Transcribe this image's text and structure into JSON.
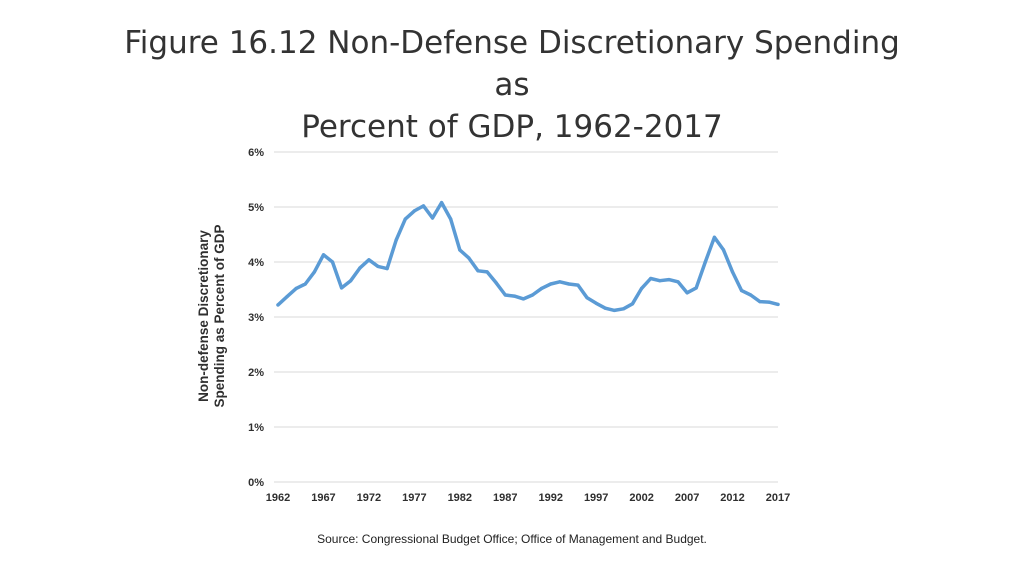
{
  "slide": {
    "title_line1": "Figure 16.12 Non-Defense Discretionary Spending as",
    "title_line2": "Percent of GDP, 1962-2017",
    "source": "Source: Congressional Budget Office; Office of Management and Budget."
  },
  "chart_data": {
    "type": "line",
    "title": "Figure 16.12 Non-Defense Discretionary Spending as Percent of GDP, 1962-2017",
    "xlabel": "",
    "ylabel_line1": "Non-defense Discretionary",
    "ylabel_line2": "Spending as Percent of GDP",
    "xlim": [
      1962,
      2017
    ],
    "ylim": [
      0,
      6
    ],
    "grid": true,
    "line_color": "#5b9bd5",
    "grid_color": "#d9d9d9",
    "x_ticks": [
      "1962",
      "1967",
      "1972",
      "1977",
      "1982",
      "1987",
      "1992",
      "1997",
      "2002",
      "2007",
      "2012",
      "2017"
    ],
    "y_ticks": [
      "0%",
      "1%",
      "2%",
      "3%",
      "4%",
      "5%",
      "6%"
    ],
    "series": [
      {
        "name": "Non-defense discretionary spending (% of GDP)",
        "x": [
          1962,
          1963,
          1964,
          1965,
          1966,
          1967,
          1968,
          1969,
          1970,
          1971,
          1972,
          1973,
          1974,
          1975,
          1976,
          1977,
          1978,
          1979,
          1980,
          1981,
          1982,
          1983,
          1984,
          1985,
          1986,
          1987,
          1988,
          1989,
          1990,
          1991,
          1992,
          1993,
          1994,
          1995,
          1996,
          1997,
          1998,
          1999,
          2000,
          2001,
          2002,
          2003,
          2004,
          2005,
          2006,
          2007,
          2008,
          2009,
          2010,
          2011,
          2012,
          2013,
          2014,
          2015,
          2016,
          2017
        ],
        "values": [
          3.22,
          3.37,
          3.52,
          3.6,
          3.82,
          4.13,
          4.0,
          3.53,
          3.66,
          3.89,
          4.04,
          3.92,
          3.88,
          4.4,
          4.78,
          4.93,
          5.02,
          4.8,
          5.08,
          4.78,
          4.22,
          4.07,
          3.84,
          3.82,
          3.62,
          3.4,
          3.38,
          3.33,
          3.4,
          3.52,
          3.6,
          3.64,
          3.6,
          3.58,
          3.35,
          3.25,
          3.16,
          3.12,
          3.15,
          3.24,
          3.52,
          3.7,
          3.66,
          3.68,
          3.64,
          3.44,
          3.53,
          4.0,
          4.45,
          4.22,
          3.82,
          3.48,
          3.4,
          3.28,
          3.27,
          3.23
        ]
      }
    ]
  }
}
